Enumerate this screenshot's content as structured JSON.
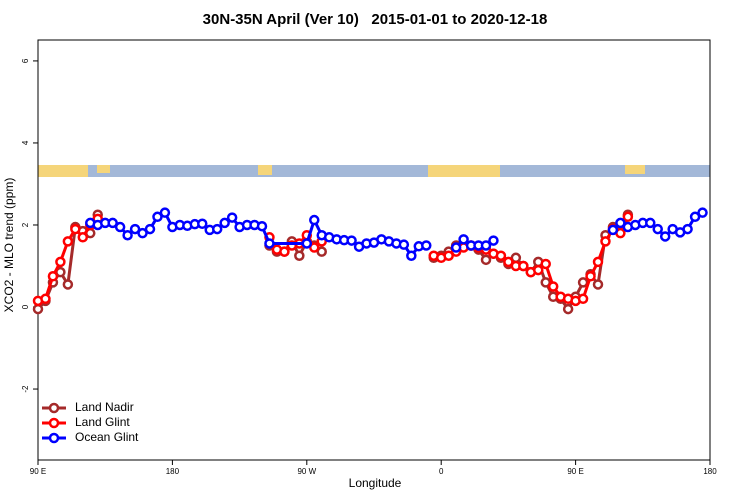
{
  "chart_data": {
    "type": "line",
    "title": "30N-35N April (Ver 10)   2015-01-01 to 2020-12-18",
    "x_label": "Longitude",
    "y_label": "XCO2 - MLO trend (ppm)",
    "xlim": [
      90,
      540
    ],
    "ylim": [
      -3.73,
      6.51
    ],
    "xticks": [
      {
        "value": 90,
        "label": "90 E"
      },
      180,
      {
        "value": 270,
        "label": "90 W"
      },
      {
        "value": 360,
        "label": "0"
      },
      {
        "value": 450,
        "label": "90 E"
      },
      180
    ],
    "yticks": [
      -2,
      0,
      2,
      4,
      6
    ],
    "legend": "bottom-left",
    "series": [
      {
        "name": "Land Nadir",
        "color": "#a52a2a",
        "x": [
          90,
          95,
          100,
          105,
          110,
          115,
          120,
          125,
          130,
          135,
          245,
          250,
          255,
          260,
          265,
          270,
          275,
          280,
          285,
          355,
          360,
          365,
          370,
          375,
          380,
          385,
          390,
          395,
          400,
          405,
          410,
          415,
          420,
          425,
          430,
          435,
          440,
          445,
          450,
          455,
          460,
          465,
          470,
          475,
          480,
          485
        ],
        "values": [
          -0.05,
          0.15,
          0.6,
          0.85,
          0.55,
          1.95,
          1.85,
          1.8,
          2.25,
          null,
          1.5,
          1.35,
          1.35,
          1.6,
          1.25,
          1.6,
          1.5,
          1.35,
          null,
          1.2,
          1.25,
          1.35,
          1.5,
          1.55,
          1.5,
          1.4,
          1.15,
          1.3,
          1.2,
          1.05,
          1.2,
          1.0,
          0.85,
          1.1,
          0.6,
          0.25,
          0.2,
          -0.05,
          0.25,
          0.6,
          0.8,
          0.55,
          1.75,
          1.95,
          1.85,
          2.25
        ]
      },
      {
        "name": "Land Glint",
        "color": "#ff0000",
        "x": [
          90,
          95,
          100,
          105,
          110,
          115,
          120,
          125,
          130,
          135,
          245,
          250,
          255,
          260,
          265,
          270,
          275,
          280,
          285,
          355,
          360,
          365,
          370,
          375,
          380,
          385,
          390,
          395,
          400,
          405,
          410,
          415,
          420,
          425,
          430,
          435,
          440,
          445,
          450,
          455,
          460,
          465,
          470,
          475,
          480,
          485
        ],
        "values": [
          0.15,
          0.2,
          0.75,
          1.1,
          1.6,
          1.9,
          1.7,
          2.0,
          2.15,
          null,
          1.7,
          1.4,
          1.35,
          1.5,
          1.55,
          1.75,
          1.45,
          1.6,
          null,
          1.25,
          1.2,
          1.25,
          1.35,
          1.45,
          1.5,
          1.45,
          1.4,
          1.3,
          1.25,
          1.1,
          1.0,
          1.0,
          0.85,
          0.9,
          1.05,
          0.5,
          0.25,
          0.2,
          0.15,
          0.2,
          0.75,
          1.1,
          1.6,
          1.9,
          1.8,
          2.2
        ]
      },
      {
        "name": "Ocean Glint",
        "color": "#0000ff",
        "x": [
          125,
          130,
          135,
          140,
          145,
          150,
          155,
          160,
          165,
          170,
          175,
          180,
          185,
          190,
          195,
          200,
          205,
          210,
          215,
          220,
          225,
          230,
          235,
          240,
          245,
          270,
          275,
          280,
          285,
          290,
          295,
          300,
          305,
          310,
          315,
          320,
          325,
          330,
          335,
          340,
          345,
          350,
          360,
          370,
          375,
          380,
          385,
          390,
          395,
          470,
          475,
          480,
          485,
          490,
          495,
          500,
          505,
          510,
          515,
          520,
          525,
          530,
          535
        ],
        "values": [
          2.05,
          2.0,
          2.05,
          2.05,
          1.95,
          1.75,
          1.9,
          1.8,
          1.9,
          2.2,
          2.3,
          1.95,
          2.0,
          1.98,
          2.02,
          2.03,
          1.88,
          1.9,
          2.05,
          2.18,
          1.95,
          2.0,
          2.0,
          1.97,
          1.55,
          1.55,
          2.12,
          1.75,
          1.7,
          1.65,
          1.63,
          1.62,
          1.47,
          1.55,
          1.57,
          1.65,
          1.6,
          1.55,
          1.52,
          1.25,
          1.48,
          1.5,
          null,
          1.45,
          1.65,
          1.5,
          1.5,
          1.5,
          1.62,
          null,
          1.88,
          2.05,
          1.95,
          2.0,
          2.05,
          2.05,
          1.9,
          1.72,
          1.9,
          1.82,
          1.9,
          2.2,
          2.3
        ]
      }
    ]
  }
}
